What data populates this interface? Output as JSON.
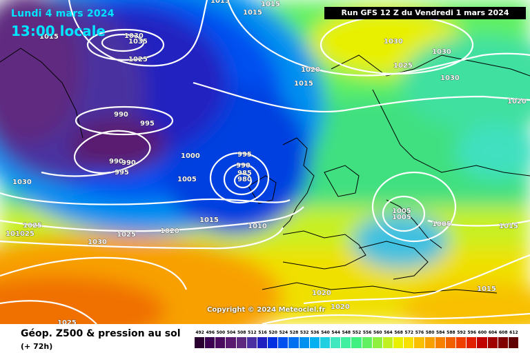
{
  "header": {
    "valid_date": "Lundi 4 mars 2024",
    "local_time": "13:00 locale",
    "run_info": "Run GFS 12 Z du Vendredi 1 mars 2024"
  },
  "copyright": "Copyright © 2024 Meteociel.fr",
  "footer": {
    "product_title": "Géop. Z500 & pression au sol",
    "forecast_step": "(+ 72h)"
  },
  "legend": {
    "values": [
      "492",
      "496",
      "500",
      "504",
      "508",
      "512",
      "516",
      "520",
      "524",
      "528",
      "532",
      "536",
      "540",
      "544",
      "548",
      "552",
      "556",
      "560",
      "564",
      "568",
      "572",
      "576",
      "580",
      "584",
      "588",
      "592",
      "596",
      "600",
      "604",
      "608",
      "612"
    ],
    "colors": [
      "#2a0030",
      "#3d0050",
      "#4a0a5e",
      "#5a1a70",
      "#5e2a80",
      "#4a30a0",
      "#2020c0",
      "#0030e0",
      "#0050f0",
      "#0070f0",
      "#0090f0",
      "#00b0f0",
      "#20d0e0",
      "#40e8c0",
      "#40f0a0",
      "#40f080",
      "#60f060",
      "#90f040",
      "#c0f020",
      "#e8f000",
      "#f8e000",
      "#f8c000",
      "#f8a000",
      "#f88000",
      "#f06000",
      "#f04000",
      "#e02000",
      "#c00000",
      "#a00000",
      "#800000",
      "#600000"
    ]
  },
  "isobars": [
    {
      "text": "1015"
    },
    {
      "text": "1015"
    },
    {
      "text": "1015"
    },
    {
      "text": "1015"
    },
    {
      "text": "1030"
    },
    {
      "text": "1035"
    },
    {
      "text": "1025"
    },
    {
      "text": "1030"
    },
    {
      "text": "1030"
    },
    {
      "text": "1025"
    },
    {
      "text": "1020"
    },
    {
      "text": "1015"
    },
    {
      "text": "1030"
    },
    {
      "text": "1020"
    },
    {
      "text": "990"
    },
    {
      "text": "995"
    },
    {
      "text": "990"
    },
    {
      "text": "990"
    },
    {
      "text": "995"
    },
    {
      "text": "1000"
    },
    {
      "text": "1005"
    },
    {
      "text": "995"
    },
    {
      "text": "990"
    },
    {
      "text": "985"
    },
    {
      "text": "980"
    },
    {
      "text": "1030"
    },
    {
      "text": "1025"
    },
    {
      "text": "1010"
    },
    {
      "text": "1025"
    },
    {
      "text": "1030"
    },
    {
      "text": "1025"
    },
    {
      "text": "1020"
    },
    {
      "text": "1015"
    },
    {
      "text": "1010"
    },
    {
      "text": "1005"
    },
    {
      "text": "1005"
    },
    {
      "text": "1005"
    },
    {
      "text": "1015"
    },
    {
      "text": "1020"
    },
    {
      "text": "1020"
    },
    {
      "text": "1015"
    },
    {
      "text": "1025"
    }
  ]
}
